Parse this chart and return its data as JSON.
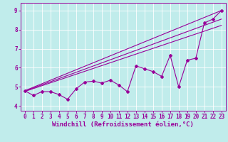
{
  "xlabel": "Windchill (Refroidissement éolien,°C)",
  "bg_color": "#c0eceb",
  "line_color": "#990099",
  "grid_color": "#ffffff",
  "xlim": [
    -0.5,
    23.5
  ],
  "ylim": [
    3.75,
    9.4
  ],
  "xticks": [
    0,
    1,
    2,
    3,
    4,
    5,
    6,
    7,
    8,
    9,
    10,
    11,
    12,
    13,
    14,
    15,
    16,
    17,
    18,
    19,
    20,
    21,
    22,
    23
  ],
  "yticks": [
    4,
    5,
    6,
    7,
    8,
    9
  ],
  "y_main": [
    4.8,
    4.55,
    4.75,
    4.75,
    4.6,
    4.35,
    4.9,
    5.25,
    5.3,
    5.2,
    5.35,
    5.1,
    4.75,
    6.1,
    5.95,
    5.8,
    5.55,
    6.65,
    5.0,
    6.4,
    6.5,
    8.35,
    8.55,
    9.0
  ],
  "straight_lines": [
    [
      [
        0,
        23
      ],
      [
        4.8,
        9.0
      ]
    ],
    [
      [
        0,
        23
      ],
      [
        4.78,
        8.55
      ]
    ],
    [
      [
        0,
        23
      ],
      [
        4.76,
        8.22
      ]
    ]
  ],
  "marker": "D",
  "marker_size": 2.0,
  "line_width": 0.8,
  "tick_fontsize": 5.5,
  "xlabel_fontsize": 6.5
}
